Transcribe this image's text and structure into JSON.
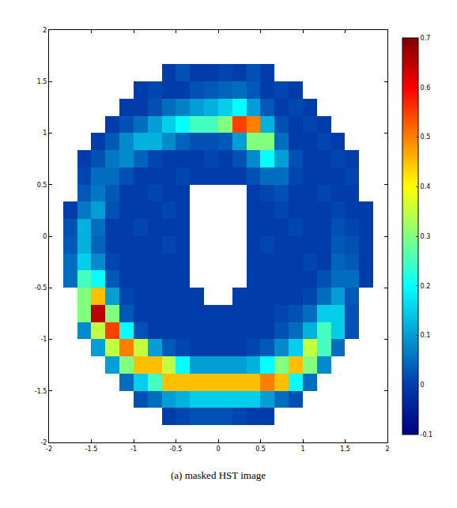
{
  "chart_data": {
    "type": "heatmap",
    "title": "(a) masked HST image",
    "color": "jet",
    "grid": false,
    "xlim": [
      -2,
      2
    ],
    "ylim": [
      -2,
      2
    ],
    "xticks": [
      -2,
      -1.5,
      -1,
      -0.5,
      0,
      0.5,
      1,
      1.5,
      2
    ],
    "yticks": [
      -2,
      -1.5,
      -1,
      -0.5,
      0,
      0.5,
      1,
      1.5,
      2
    ],
    "colorbar": {
      "range": [
        -0.1,
        0.7
      ],
      "ticks": [
        -0.1,
        0,
        0.1,
        0.2,
        0.3,
        0.4,
        0.5,
        0.6,
        0.7
      ]
    },
    "x": [
      -1.917,
      -1.75,
      -1.583,
      -1.417,
      -1.25,
      -1.083,
      -0.917,
      -0.75,
      -0.583,
      -0.417,
      -0.25,
      -0.083,
      0.083,
      0.25,
      0.417,
      0.583,
      0.75,
      0.917,
      1.083,
      1.25,
      1.417,
      1.583,
      1.75,
      1.917
    ],
    "y": [
      1.917,
      1.75,
      1.583,
      1.417,
      1.25,
      1.083,
      0.917,
      0.75,
      0.583,
      0.417,
      0.25,
      0.083,
      -0.083,
      -0.25,
      -0.417,
      -0.583,
      -0.75,
      -0.917,
      -1.083,
      -1.25,
      -1.417,
      -1.583,
      -1.75,
      -1.917
    ],
    "z": [
      [
        null,
        null,
        null,
        null,
        null,
        null,
        null,
        null,
        null,
        null,
        null,
        null,
        null,
        null,
        null,
        null,
        null,
        null,
        null,
        null,
        null,
        null,
        null,
        null
      ],
      [
        null,
        null,
        null,
        null,
        null,
        null,
        null,
        null,
        null,
        null,
        null,
        null,
        null,
        null,
        null,
        null,
        null,
        null,
        null,
        null,
        null,
        null,
        null,
        null
      ],
      [
        null,
        null,
        null,
        null,
        null,
        null,
        null,
        null,
        0,
        0.02,
        0,
        0,
        0.01,
        0,
        0.02,
        0,
        null,
        null,
        null,
        null,
        null,
        null,
        null,
        null
      ],
      [
        null,
        null,
        null,
        null,
        null,
        null,
        0,
        0.01,
        0,
        0,
        0.02,
        0.03,
        0.04,
        0.05,
        0.03,
        0,
        0.01,
        0,
        null,
        null,
        null,
        null,
        null,
        null
      ],
      [
        null,
        null,
        null,
        null,
        null,
        0,
        0,
        0.02,
        0.05,
        0.07,
        0.1,
        0.12,
        0.15,
        0.2,
        0.1,
        0.03,
        0,
        0.01,
        0,
        null,
        null,
        null,
        null,
        null
      ],
      [
        null,
        null,
        null,
        null,
        0,
        0.02,
        0.05,
        0.1,
        0.15,
        0.2,
        0.25,
        0.25,
        0.3,
        0.55,
        0.5,
        0.12,
        0.02,
        0,
        0.01,
        0,
        null,
        null,
        null,
        null
      ],
      [
        null,
        null,
        null,
        0,
        0.03,
        0.08,
        0.12,
        0.12,
        0.08,
        0.04,
        0.02,
        0.02,
        0.03,
        0.1,
        0.3,
        0.3,
        0.05,
        0,
        0,
        0.01,
        0,
        null,
        null,
        null
      ],
      [
        null,
        null,
        0,
        0.02,
        0.06,
        0.08,
        0.04,
        0.01,
        0,
        0,
        0,
        0.01,
        0,
        0.02,
        0.08,
        0.2,
        0.1,
        0.02,
        0,
        0,
        0.01,
        0,
        null,
        null
      ],
      [
        null,
        null,
        0.01,
        0.05,
        0.05,
        0.02,
        0,
        0,
        0,
        0.01,
        0,
        0,
        0,
        0,
        0.02,
        0.05,
        0.05,
        0.01,
        0,
        0,
        0,
        0.01,
        null,
        null
      ],
      [
        null,
        null,
        0.03,
        0.06,
        0.03,
        0,
        0,
        0.01,
        0,
        0,
        null,
        null,
        null,
        null,
        0,
        0.01,
        0.02,
        0,
        0,
        0.01,
        0,
        0,
        null,
        null
      ],
      [
        null,
        0,
        0.06,
        0.1,
        0.02,
        0,
        0,
        0,
        0.01,
        0,
        null,
        null,
        null,
        null,
        0,
        0,
        0.01,
        0,
        0,
        0,
        0.01,
        0,
        0,
        null
      ],
      [
        null,
        0.02,
        0.12,
        0.05,
        0,
        0,
        0.01,
        0,
        0,
        0,
        null,
        null,
        null,
        null,
        0,
        0,
        0,
        0.01,
        0,
        0,
        0.02,
        0.01,
        0,
        null
      ],
      [
        null,
        0.03,
        0.12,
        0.04,
        0,
        0,
        0,
        0,
        0.01,
        0,
        null,
        null,
        null,
        null,
        0,
        0.01,
        0,
        0,
        0,
        0,
        0.03,
        0.02,
        0,
        null
      ],
      [
        null,
        0.05,
        0.15,
        0.08,
        0.01,
        0,
        0,
        0,
        0,
        0,
        null,
        null,
        null,
        null,
        0,
        0,
        0,
        0,
        0.01,
        0,
        0.04,
        0.03,
        0,
        null
      ],
      [
        null,
        0.05,
        0.25,
        0.2,
        0.03,
        0,
        0,
        0,
        0,
        0,
        null,
        null,
        null,
        null,
        0,
        0,
        0,
        0,
        0,
        0.02,
        0.05,
        0.05,
        0,
        null
      ],
      [
        null,
        null,
        0.3,
        0.45,
        0.1,
        0.01,
        0,
        0,
        0,
        0,
        0,
        null,
        null,
        0,
        0,
        0,
        0,
        0,
        0.01,
        0.05,
        0.1,
        0.03,
        null,
        null
      ],
      [
        null,
        null,
        0.3,
        0.65,
        0.3,
        0.03,
        0,
        0,
        0,
        0,
        0,
        0,
        0,
        0,
        0,
        0,
        0.01,
        0.02,
        0.05,
        0.15,
        0.15,
        0.02,
        null,
        null
      ],
      [
        null,
        null,
        0.08,
        0.35,
        0.55,
        0.2,
        0.02,
        0,
        0,
        0,
        0,
        0,
        0,
        0,
        0,
        0,
        0.02,
        0.05,
        0.12,
        0.25,
        0.15,
        0.02,
        null,
        null
      ],
      [
        null,
        null,
        null,
        0.1,
        0.35,
        0.5,
        0.35,
        0.1,
        0.03,
        0.01,
        0,
        0,
        0,
        0,
        0.01,
        0.03,
        0.08,
        0.15,
        0.35,
        0.25,
        0.05,
        null,
        null,
        null
      ],
      [
        null,
        null,
        null,
        null,
        0.1,
        0.3,
        0.45,
        0.45,
        0.35,
        0.2,
        0.1,
        0.1,
        0.1,
        0.1,
        0.12,
        0.2,
        0.3,
        0.45,
        0.3,
        0.08,
        null,
        null,
        null,
        null
      ],
      [
        null,
        null,
        null,
        null,
        null,
        0.05,
        0.15,
        0.25,
        0.45,
        0.45,
        0.45,
        0.45,
        0.45,
        0.45,
        0.45,
        0.5,
        0.45,
        0.2,
        0.05,
        null,
        null,
        null,
        null,
        null
      ],
      [
        null,
        null,
        null,
        null,
        null,
        null,
        0.02,
        0.05,
        0.1,
        0.12,
        0.15,
        0.15,
        0.15,
        0.15,
        0.15,
        0.1,
        0.05,
        0.02,
        null,
        null,
        null,
        null,
        null,
        null
      ],
      [
        null,
        null,
        null,
        null,
        null,
        null,
        null,
        null,
        0,
        0.01,
        0.02,
        0.02,
        0.02,
        0.01,
        0,
        0,
        null,
        null,
        null,
        null,
        null,
        null,
        null,
        null
      ],
      [
        null,
        null,
        null,
        null,
        null,
        null,
        null,
        null,
        null,
        null,
        null,
        null,
        null,
        null,
        null,
        null,
        null,
        null,
        null,
        null,
        null,
        null,
        null,
        null
      ]
    ]
  }
}
